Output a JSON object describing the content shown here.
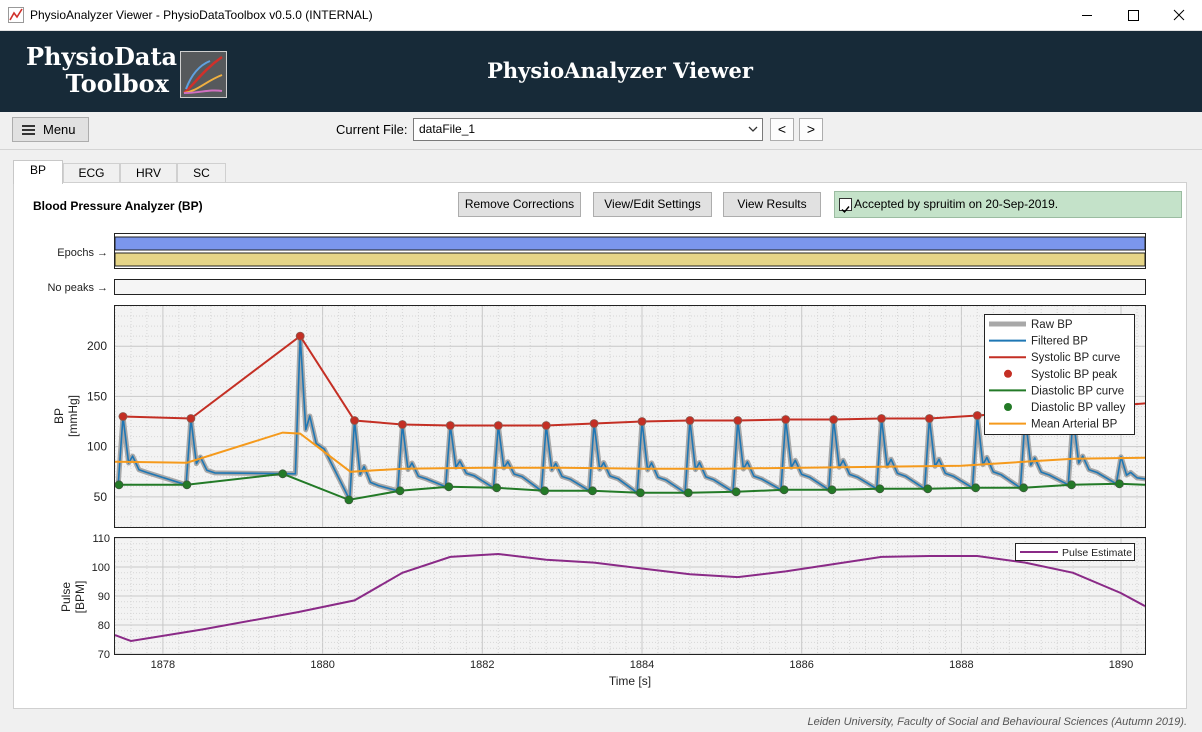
{
  "window": {
    "title": "PhysioAnalyzer Viewer  -  PhysioDataToolbox v0.5.0 (INTERNAL)"
  },
  "banner": {
    "logo_line1": "PhysioData",
    "logo_line2": "Toolbox",
    "title": "PhysioAnalyzer Viewer"
  },
  "toolbar": {
    "menu_label": "Menu",
    "current_file_label": "Current File:",
    "current_file_value": "dataFile_1",
    "prev_label": "<",
    "next_label": ">"
  },
  "tabs": [
    {
      "label": "BP",
      "active": true
    },
    {
      "label": "ECG",
      "active": false
    },
    {
      "label": "HRV",
      "active": false
    },
    {
      "label": "SC",
      "active": false
    }
  ],
  "panel": {
    "title": "Blood Pressure Analyzer (BP)",
    "remove_corrections": "Remove Corrections",
    "view_edit_settings": "View/Edit Settings",
    "view_results": "View Results",
    "accepted_text": "Accepted by spruitim on 20-Sep-2019."
  },
  "colors": {
    "epoch_blue": "#7b96ec",
    "epoch_yellow": "#e6d587",
    "raw_bp": "#a8a8a8",
    "filtered_bp": "#1f77b4",
    "systolic": "#c42f24",
    "diastolic": "#237a27",
    "mean_arterial": "#f59a1c",
    "pulse": "#8a2a87",
    "banner_bg": "#172a38",
    "accepted_bg": "#c4e2c9"
  },
  "epochs_label": "Epochs →",
  "no_peaks_label": "No peaks →",
  "chart_data": [
    {
      "type": "line",
      "ylabel": "BP\n[mmHg]",
      "xlim": [
        1877.4,
        1890.3
      ],
      "ylim": [
        20,
        240
      ],
      "y_ticks": [
        50,
        100,
        150,
        200
      ],
      "grid": true,
      "legend_position": "top-right",
      "legend": [
        "Raw BP",
        "Filtered BP",
        "Systolic BP curve",
        "Systolic BP peak",
        "Diastolic BP curve",
        "Diastolic BP valley",
        "Mean Arterial BP"
      ],
      "systolic_peaks": {
        "x": [
          1877.5,
          1878.35,
          1879.72,
          1880.4,
          1881.0,
          1881.6,
          1882.2,
          1882.8,
          1883.4,
          1884.0,
          1884.6,
          1885.2,
          1885.8,
          1886.4,
          1887.0,
          1887.6,
          1888.2
        ],
        "y": [
          130,
          128,
          210,
          126,
          122,
          121,
          121,
          121,
          123,
          125,
          126,
          126,
          127,
          127,
          128,
          128,
          131
        ]
      },
      "systolic_curve_end": [
        1890.3,
        143
      ],
      "diastolic_valleys": {
        "x": [
          1877.45,
          1878.3,
          1879.5,
          1880.33,
          1880.97,
          1881.58,
          1882.18,
          1882.78,
          1883.38,
          1883.98,
          1884.58,
          1885.18,
          1885.78,
          1886.38,
          1886.98,
          1887.58,
          1888.18,
          1888.78,
          1889.38,
          1889.98
        ],
        "y": [
          62,
          62,
          73,
          47,
          56,
          60,
          59,
          56,
          56,
          54,
          54,
          55,
          57,
          57,
          58,
          58,
          59,
          59,
          62,
          63
        ]
      },
      "diastolic_curve_end": [
        1890.3,
        62
      ],
      "mean_arterial": {
        "x": [
          1877.4,
          1878.3,
          1879.5,
          1879.72,
          1880.35,
          1881.0,
          1882.0,
          1883.0,
          1884.0,
          1885.0,
          1886.0,
          1887.0,
          1888.0,
          1888.6,
          1889.4,
          1890.3
        ],
        "y": [
          85,
          84,
          114,
          113,
          75,
          78,
          79,
          79,
          78,
          78,
          79,
          80,
          81,
          84,
          88,
          89
        ]
      },
      "bp_waveform_beats": {
        "x": [
          1877.5,
          1878.35,
          1879.72,
          1880.4,
          1881.0,
          1881.6,
          1882.2,
          1882.8,
          1883.4,
          1884.0,
          1884.6,
          1885.2,
          1885.8,
          1886.4,
          1887.0,
          1887.6,
          1888.2,
          1888.8,
          1889.4,
          1890.0
        ],
        "peak": [
          130,
          128,
          210,
          126,
          122,
          121,
          121,
          121,
          123,
          125,
          126,
          126,
          127,
          127,
          128,
          128,
          131,
          130,
          130,
          90
        ],
        "trough": [
          62,
          62,
          73,
          47,
          56,
          60,
          59,
          56,
          56,
          54,
          54,
          55,
          57,
          57,
          58,
          58,
          59,
          59,
          62,
          63
        ]
      }
    },
    {
      "type": "line",
      "xlabel": "Time [s]",
      "ylabel": "Pulse\n[BPM]",
      "xlim": [
        1877.4,
        1890.3
      ],
      "ylim": [
        70,
        110
      ],
      "x_ticks": [
        1878,
        1880,
        1882,
        1884,
        1886,
        1888,
        1890
      ],
      "y_ticks": [
        70,
        80,
        90,
        100,
        110
      ],
      "grid": true,
      "legend_position": "top-right",
      "series": [
        {
          "name": "Pulse Estimate",
          "x": [
            1877.4,
            1877.6,
            1878.5,
            1879.7,
            1880.4,
            1881.0,
            1881.6,
            1882.2,
            1882.8,
            1883.4,
            1884.0,
            1884.6,
            1885.2,
            1885.8,
            1886.4,
            1887.0,
            1887.6,
            1888.2,
            1888.8,
            1889.4,
            1890.0,
            1890.3
          ],
          "y": [
            76.5,
            74.5,
            78.5,
            84.5,
            88.5,
            98,
            103.5,
            104.5,
            102.5,
            101.5,
            99.5,
            97.5,
            96.5,
            98.5,
            101,
            103.5,
            103.8,
            103.8,
            101.5,
            98,
            91,
            86.5
          ]
        }
      ]
    }
  ],
  "footer": "Leiden University, Faculty of Social and Behavioural Sciences (Autumn 2019)."
}
